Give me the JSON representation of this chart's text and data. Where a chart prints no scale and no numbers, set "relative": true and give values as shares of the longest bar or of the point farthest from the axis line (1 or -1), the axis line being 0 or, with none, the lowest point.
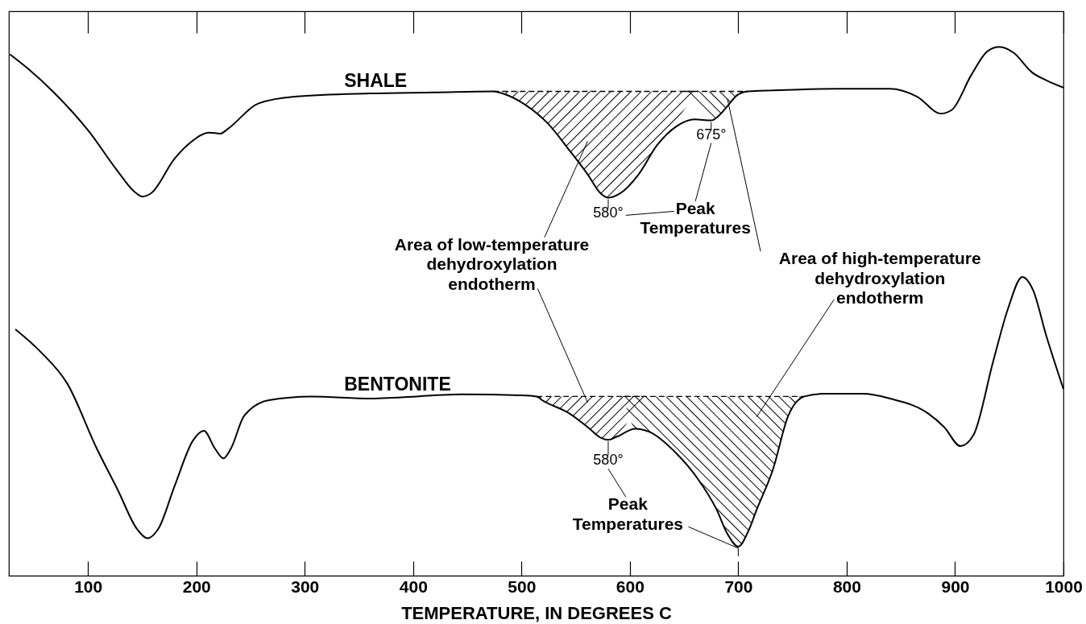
{
  "chart_data": {
    "type": "line",
    "relative": true,
    "xlabel": "TEMPERATURE, IN DEGREES C",
    "xlim": [
      27,
      1000
    ],
    "xticks": [
      100,
      200,
      300,
      400,
      500,
      600,
      700,
      800,
      900,
      1000
    ],
    "line_style": "solid",
    "series": [
      {
        "name": "SHALE",
        "color": "#000000",
        "x": [
          28,
          44,
          69,
          101,
          126,
          143,
          150,
          158,
          180,
          195,
          212,
          222,
          229,
          257,
          291,
          360,
          420,
          474,
          484,
          504,
          524,
          544,
          561,
          573,
          580,
          591,
          608,
          625,
          643,
          660,
          675,
          682,
          690,
          699,
          709,
          732,
          791,
          840,
          865,
          887,
          897,
          915,
          930,
          941,
          954,
          971,
          984,
          1000
        ],
        "values": [
          0.986,
          0.96,
          0.913,
          0.84,
          0.769,
          0.726,
          0.717,
          0.723,
          0.789,
          0.82,
          0.838,
          0.836,
          0.845,
          0.893,
          0.906,
          0.912,
          0.914,
          0.916,
          0.911,
          0.89,
          0.856,
          0.805,
          0.759,
          0.723,
          0.715,
          0.723,
          0.759,
          0.814,
          0.85,
          0.863,
          0.861,
          0.87,
          0.888,
          0.909,
          0.916,
          0.918,
          0.921,
          0.921,
          0.906,
          0.874,
          0.881,
          0.947,
          0.992,
          1.0,
          0.989,
          0.952,
          0.937,
          0.923
        ]
      },
      {
        "name": "BENTONITE",
        "color": "#000000",
        "x": [
          33,
          56,
          81,
          108,
          128,
          145,
          155,
          165,
          180,
          197,
          207,
          217,
          225,
          232,
          244,
          267,
          306,
          361,
          445,
          499,
          514,
          519,
          544,
          561,
          573,
          580,
          588,
          605,
          618,
          643,
          662,
          680,
          690,
          700,
          709,
          717,
          732,
          746,
          761,
          778,
          815,
          840,
          875,
          890,
          905,
          917,
          935,
          949,
          962,
          972,
          984,
          1000
        ],
        "values": [
          0.466,
          0.424,
          0.363,
          0.241,
          0.16,
          0.089,
          0.071,
          0.089,
          0.17,
          0.256,
          0.274,
          0.241,
          0.222,
          0.241,
          0.302,
          0.332,
          0.339,
          0.335,
          0.343,
          0.341,
          0.339,
          0.332,
          0.307,
          0.281,
          0.261,
          0.257,
          0.263,
          0.278,
          0.272,
          0.231,
          0.185,
          0.125,
          0.079,
          0.055,
          0.083,
          0.125,
          0.201,
          0.302,
          0.339,
          0.344,
          0.344,
          0.335,
          0.307,
          0.281,
          0.245,
          0.266,
          0.404,
          0.506,
          0.565,
          0.54,
          0.455,
          0.353
        ]
      },
      {
        "color": "#000000",
        "line_style": "dashed",
        "x": [
          474,
          484,
          504,
          524,
          544,
          561,
          573,
          580,
          591,
          608,
          625,
          630,
          645,
          663
        ],
        "values": [
          0.916,
          0.916,
          0.916,
          0.916,
          0.916,
          0.916,
          0.916,
          0.916,
          0.916,
          0.916,
          0.916,
          0.916,
          0.916,
          0.916
        ],
        "lower": [
          0.916,
          0.911,
          0.89,
          0.856,
          0.805,
          0.759,
          0.723,
          0.715,
          0.723,
          0.759,
          0.814,
          0.825,
          0.867,
          0.916
        ],
        "upper": [
          0.916,
          0.916,
          0.916,
          0.916,
          0.916,
          0.916,
          0.916,
          0.916,
          0.916,
          0.916,
          0.916,
          0.916,
          0.916,
          0.916
        ]
      },
      {
        "color": "#000000",
        "line_style": "dashed",
        "x": [
          650,
          660,
          675,
          682,
          690,
          699,
          709
        ],
        "values": [
          0.916,
          0.916,
          0.916,
          0.916,
          0.916,
          0.916,
          0.916
        ],
        "lower": [
          0.916,
          0.894,
          0.861,
          0.87,
          0.888,
          0.909,
          0.916
        ],
        "upper": [
          0.916,
          0.916,
          0.916,
          0.916,
          0.916,
          0.916,
          0.916
        ]
      },
      {
        "color": "#000000",
        "line_style": "dashed",
        "x": [
          514,
          519,
          544,
          561,
          573,
          580,
          588,
          601,
          614
        ],
        "values": [
          0.339,
          0.339,
          0.339,
          0.339,
          0.339,
          0.339,
          0.339,
          0.339,
          0.339
        ],
        "lower": [
          0.339,
          0.332,
          0.307,
          0.281,
          0.261,
          0.257,
          0.263,
          0.301,
          0.339
        ],
        "upper": [
          0.339,
          0.339,
          0.339,
          0.339,
          0.339,
          0.339,
          0.339,
          0.339,
          0.339
        ]
      },
      {
        "color": "#000000",
        "line_style": "dashed",
        "x": [
          594,
          605,
          618,
          643,
          662,
          680,
          690,
          700,
          709,
          717,
          732,
          746,
          761
        ],
        "values": [
          0.339,
          0.339,
          0.339,
          0.339,
          0.339,
          0.339,
          0.339,
          0.339,
          0.339,
          0.339,
          0.339,
          0.339,
          0.339
        ],
        "lower": [
          0.339,
          0.278,
          0.272,
          0.231,
          0.185,
          0.125,
          0.079,
          0.055,
          0.083,
          0.125,
          0.201,
          0.302,
          0.339
        ],
        "upper": [
          0.339,
          0.339,
          0.339,
          0.339,
          0.339,
          0.339,
          0.339,
          0.339,
          0.339,
          0.339,
          0.339,
          0.339,
          0.339
        ]
      }
    ],
    "annotations": [
      "580°",
      "675°",
      "Peak Temperatures",
      "Area of low-temperature dehydroxylation endotherm",
      "Area of high-temperature dehydroxylation endotherm",
      "580°",
      "Peak Temperatures"
    ]
  }
}
